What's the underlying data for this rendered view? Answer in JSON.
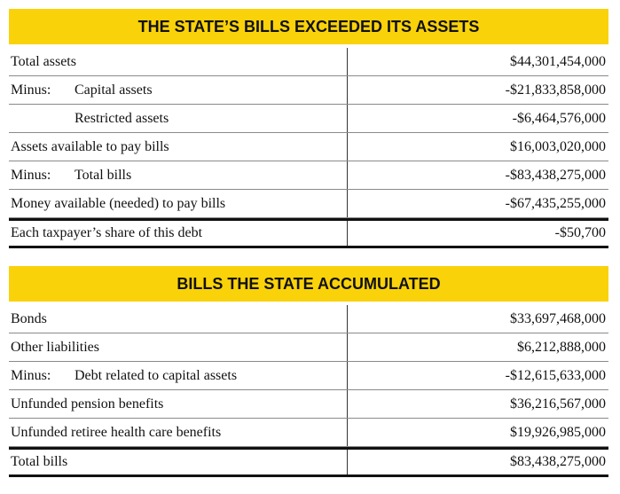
{
  "tables": [
    {
      "title": "THE STATE’S BILLS EXCEEDED ITS ASSETS",
      "rows": [
        {
          "label": "Total assets",
          "value": "$44,301,454,000"
        },
        {
          "prefix": "Minus:",
          "label": "Capital assets",
          "value": "-$21,833,858,000"
        },
        {
          "label": "Restricted assets",
          "value": "-$6,464,576,000",
          "indent": true
        },
        {
          "label": "Assets available to pay bills",
          "value": "$16,003,020,000"
        },
        {
          "prefix": "Minus:",
          "label": "Total bills",
          "value": "-$83,438,275,000"
        },
        {
          "label": "Money available (needed) to pay bills",
          "value": "-$67,435,255,000"
        },
        {
          "label": "Each taxpayer’s share of this debt",
          "value": "-$50,700",
          "thick_rule_above": true
        }
      ]
    },
    {
      "title": "BILLS THE STATE ACCUMULATED",
      "rows": [
        {
          "label": "Bonds",
          "value": "$33,697,468,000"
        },
        {
          "label": "Other liabilities",
          "value": "$6,212,888,000"
        },
        {
          "prefix": "Minus:",
          "label": "Debt related to capital assets",
          "value": "-$12,615,633,000"
        },
        {
          "label": "Unfunded pension benefits",
          "value": "$36,216,567,000"
        },
        {
          "label": "Unfunded retiree health care benefits",
          "value": "$19,926,985,000"
        },
        {
          "label": "Total bills",
          "value": "$83,438,275,000",
          "thick_rule_above": true
        }
      ]
    }
  ]
}
